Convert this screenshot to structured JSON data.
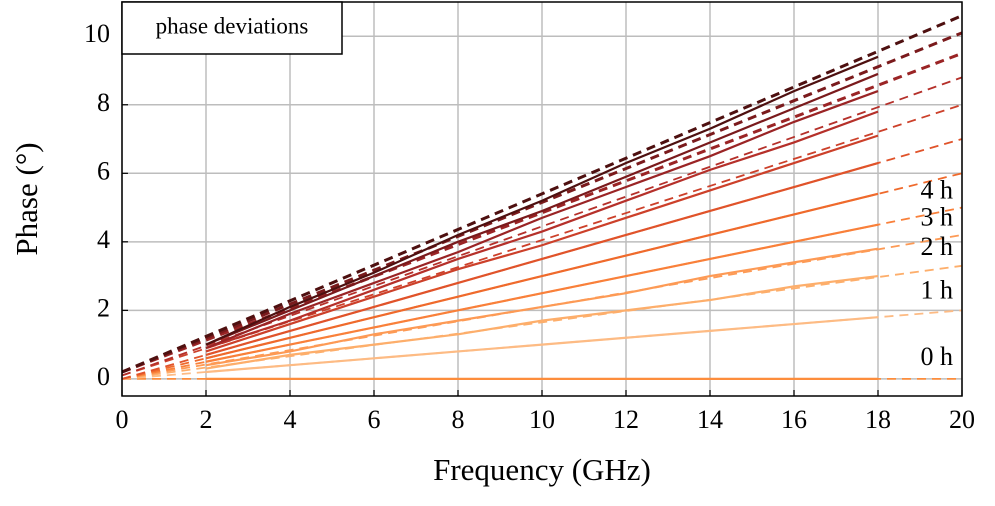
{
  "chart_data": {
    "type": "line",
    "x_label": "Frequency (GHz)",
    "y_label": "Phase (°)",
    "box_label": "phase deviations",
    "x": [
      2,
      4,
      6,
      8,
      10,
      12,
      14,
      16,
      18
    ],
    "fit_x": [
      0,
      20
    ],
    "series": [
      {
        "color": "#fd8d3c",
        "values": [
          0,
          0,
          0,
          0,
          0,
          0,
          0,
          0,
          0
        ],
        "fit": [
          0,
          0
        ]
      },
      {
        "color": "#fdbb84",
        "values": [
          0.2,
          0.4,
          0.6,
          0.8,
          1.0,
          1.2,
          1.4,
          1.6,
          1.8
        ],
        "fit": [
          0,
          2.0
        ]
      },
      {
        "color": "#fdae6b",
        "values": [
          0.3,
          0.7,
          1.0,
          1.3,
          1.7,
          2.0,
          2.3,
          2.7,
          3.0
        ],
        "fit": [
          0,
          3.3
        ]
      },
      {
        "color": "#fd9a55",
        "values": [
          0.4,
          0.8,
          1.3,
          1.7,
          2.1,
          2.5,
          3.0,
          3.4,
          3.8
        ],
        "fit": [
          0,
          4.2
        ]
      },
      {
        "color": "#f9803a",
        "values": [
          0.5,
          1.0,
          1.5,
          2.0,
          2.5,
          3.0,
          3.5,
          4.0,
          4.5
        ],
        "fit": [
          0,
          5.0
        ]
      },
      {
        "color": "#ef6a2c",
        "values": [
          0.6,
          1.2,
          1.8,
          2.4,
          3.0,
          3.6,
          4.2,
          4.8,
          5.4
        ],
        "fit": [
          0,
          6.0
        ]
      },
      {
        "color": "#e0532a",
        "values": [
          0.7,
          1.4,
          2.1,
          2.8,
          3.5,
          4.2,
          4.9,
          5.6,
          6.3
        ],
        "fit": [
          0,
          7.0
        ]
      },
      {
        "color": "#cc402a",
        "values": [
          0.8,
          1.6,
          2.4,
          3.2,
          3.9,
          4.7,
          5.5,
          6.3,
          7.1
        ],
        "fit": [
          0.1,
          8.0
        ]
      },
      {
        "color": "#b5302a",
        "values": [
          0.9,
          1.7,
          2.6,
          3.5,
          4.3,
          5.2,
          6.1,
          6.9,
          7.8
        ],
        "fit": [
          0.1,
          8.8
        ]
      },
      {
        "color": "#9a2425",
        "values": [
          0.9,
          1.9,
          2.8,
          3.7,
          4.7,
          5.6,
          6.5,
          7.5,
          8.4
        ],
        "fit": [
          0.2,
          9.5
        ]
      },
      {
        "color": "#7a1a1c",
        "values": [
          1.0,
          2.0,
          3.0,
          4.0,
          4.9,
          5.9,
          6.9,
          7.9,
          8.9
        ],
        "fit": [
          0.2,
          10.1
        ]
      },
      {
        "color": "#4e1010",
        "values": [
          1.0,
          2.1,
          3.1,
          4.2,
          5.2,
          6.3,
          7.3,
          8.4,
          9.4
        ],
        "fit": [
          0.2,
          10.6
        ]
      }
    ],
    "labels": [
      "0 h",
      "1 h",
      "2 h",
      "3 h",
      "4 h"
    ],
    "xlim": [
      0,
      20
    ],
    "ylim": [
      -0.5,
      11
    ],
    "xticks": [
      0,
      2,
      4,
      6,
      8,
      10,
      12,
      14,
      16,
      18,
      20
    ],
    "yticks": [
      0,
      2,
      4,
      6,
      8,
      10
    ],
    "grid": true
  }
}
